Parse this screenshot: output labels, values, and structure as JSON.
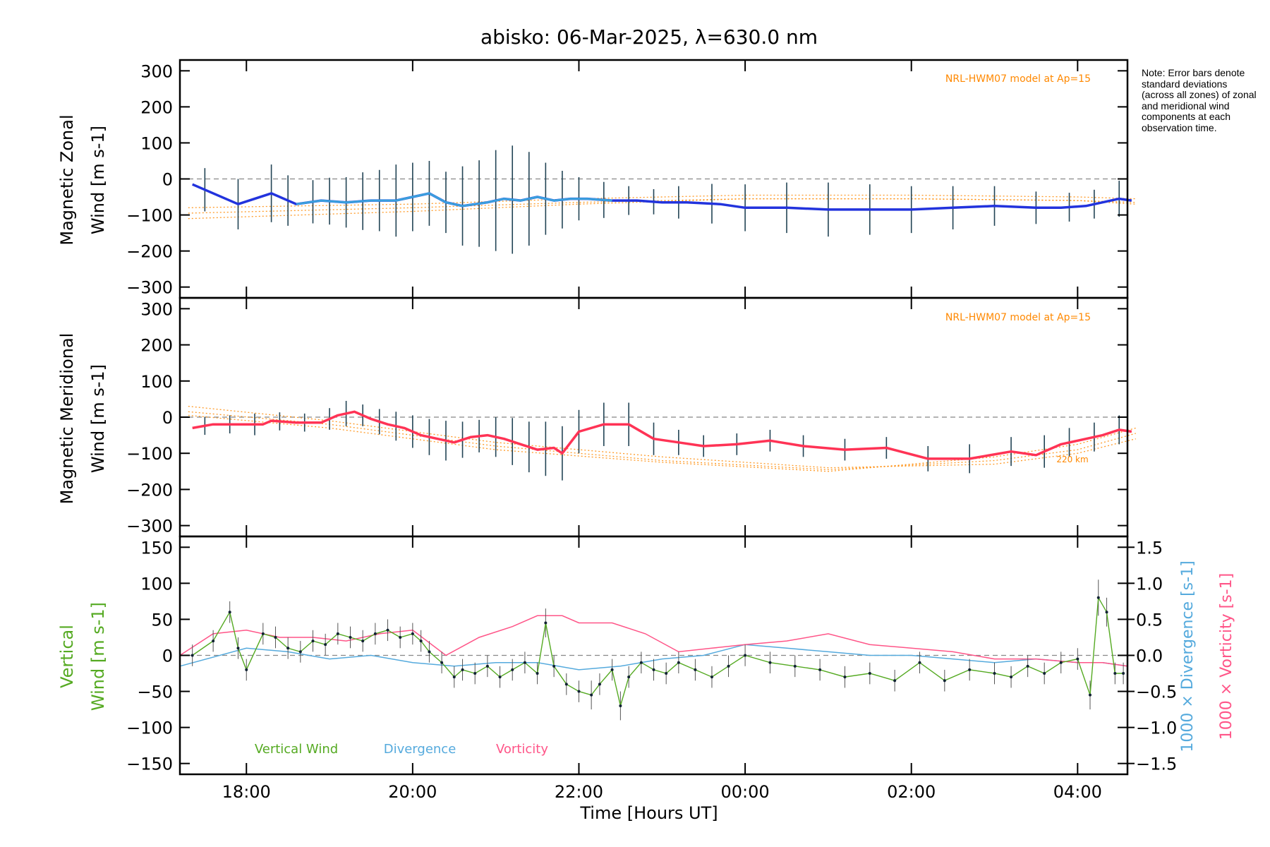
{
  "note_text": "Note: Error bars denote standard deviations (across all zones) of zonal and meridional wind components at each observation time.",
  "colors": {
    "zonal": "#2233dd",
    "zonal_light": "#3aa0dd",
    "meridional": "#ff3355",
    "vertical": "#55aa22",
    "divergence": "#55aadd",
    "vorticity": "#ff5588",
    "model": "#ff8800",
    "error_bar": "#224455"
  },
  "chart_data": [
    {
      "type": "line",
      "panel": "zonal",
      "title": "abisko: 06-Mar-2025, λ=630.0 nm",
      "ylabel_line1": "Magnetic Zonal",
      "ylabel_line2": "Wind [m s-1]",
      "ylim": [
        -330,
        330
      ],
      "yticks": [
        -300,
        -200,
        -100,
        0,
        100,
        200,
        300
      ],
      "model_label": "NRL-HWM07 model at Ap=15",
      "x": [
        17.35,
        17.9,
        18.3,
        18.6,
        18.9,
        19.2,
        19.5,
        19.8,
        20.0,
        20.2,
        20.4,
        20.6,
        20.9,
        21.1,
        21.3,
        21.5,
        21.7,
        21.9,
        22.1,
        22.4,
        22.7,
        23.0,
        23.3,
        23.7,
        24.0,
        24.5,
        25.0,
        25.5,
        26.0,
        26.5,
        27.0,
        27.5,
        27.8,
        28.1,
        28.3,
        28.5,
        28.65
      ],
      "values": [
        -15,
        -70,
        -40,
        -70,
        -60,
        -65,
        -60,
        -60,
        -50,
        -40,
        -65,
        -75,
        -65,
        -55,
        -60,
        -50,
        -60,
        -55,
        -55,
        -60,
        -60,
        -65,
        -65,
        -70,
        -80,
        -80,
        -85,
        -85,
        -85,
        -80,
        -75,
        -80,
        -80,
        -75,
        -65,
        -55,
        -60
      ],
      "error_x": [
        17.5,
        17.9,
        18.3,
        18.5,
        18.8,
        19.0,
        19.2,
        19.4,
        19.6,
        19.8,
        20.0,
        20.2,
        20.4,
        20.6,
        20.8,
        21.0,
        21.2,
        21.4,
        21.6,
        21.8,
        22.0,
        22.3,
        22.6,
        22.9,
        23.2,
        23.6,
        24.0,
        24.5,
        25.0,
        25.5,
        26.0,
        26.5,
        27.0,
        27.5,
        27.9,
        28.2,
        28.5
      ],
      "error_sd": [
        60,
        70,
        80,
        70,
        60,
        65,
        70,
        80,
        85,
        100,
        95,
        90,
        85,
        110,
        120,
        140,
        150,
        130,
        100,
        80,
        60,
        50,
        40,
        35,
        45,
        55,
        65,
        70,
        75,
        70,
        65,
        60,
        55,
        45,
        40,
        40,
        50
      ],
      "model_curves": [
        {
          "x": [
            17.3,
            20.0,
            22.0,
            24.0,
            26.0,
            28.0,
            28.7
          ],
          "values": [
            -110,
            -90,
            -70,
            -55,
            -55,
            -60,
            -65
          ]
        },
        {
          "x": [
            17.3,
            20.0,
            22.0,
            24.0,
            26.0,
            28.0,
            28.7
          ],
          "values": [
            -80,
            -70,
            -55,
            -45,
            -45,
            -50,
            -55
          ]
        },
        {
          "x": [
            17.3,
            20.0,
            22.0,
            24.0,
            26.0,
            28.0,
            28.7
          ],
          "values": [
            -95,
            -80,
            -65,
            -55,
            -55,
            -60,
            -70
          ]
        }
      ]
    },
    {
      "type": "line",
      "panel": "meridional",
      "ylabel_line1": "Magnetic Meridional",
      "ylabel_line2": "Wind [m s-1]",
      "ylim": [
        -330,
        330
      ],
      "yticks": [
        -300,
        -200,
        -100,
        0,
        100,
        200,
        300
      ],
      "model_label": "NRL-HWM07 model at Ap=15",
      "model_alt_label": "220 km",
      "x": [
        17.35,
        17.6,
        17.9,
        18.2,
        18.3,
        18.6,
        18.9,
        19.1,
        19.3,
        19.5,
        19.7,
        19.9,
        20.1,
        20.3,
        20.5,
        20.7,
        20.9,
        21.1,
        21.3,
        21.5,
        21.7,
        21.8,
        22.0,
        22.3,
        22.6,
        22.9,
        23.2,
        23.5,
        23.9,
        24.3,
        24.7,
        25.2,
        25.7,
        26.2,
        26.7,
        27.2,
        27.5,
        27.8,
        28.0,
        28.3,
        28.5,
        28.65
      ],
      "values": [
        -30,
        -20,
        -20,
        -20,
        -10,
        -15,
        -15,
        5,
        15,
        -5,
        -20,
        -30,
        -50,
        -60,
        -70,
        -55,
        -50,
        -60,
        -75,
        -90,
        -85,
        -100,
        -40,
        -20,
        -20,
        -60,
        -70,
        -80,
        -75,
        -65,
        -80,
        -90,
        -85,
        -115,
        -115,
        -95,
        -105,
        -75,
        -65,
        -50,
        -35,
        -40
      ],
      "error_x": [
        17.5,
        17.8,
        18.1,
        18.4,
        18.7,
        19.0,
        19.2,
        19.4,
        19.6,
        19.8,
        20.0,
        20.2,
        20.4,
        20.6,
        20.8,
        21.0,
        21.2,
        21.4,
        21.6,
        21.8,
        22.0,
        22.3,
        22.6,
        22.9,
        23.2,
        23.5,
        23.9,
        24.3,
        24.7,
        25.2,
        25.7,
        26.2,
        26.7,
        27.2,
        27.6,
        27.9,
        28.2,
        28.5
      ],
      "error_sd": [
        25,
        25,
        30,
        25,
        25,
        30,
        35,
        30,
        35,
        40,
        45,
        50,
        55,
        50,
        45,
        55,
        65,
        70,
        75,
        75,
        60,
        60,
        60,
        45,
        35,
        30,
        30,
        30,
        30,
        30,
        30,
        35,
        40,
        40,
        45,
        40,
        40,
        40
      ],
      "model_curves": [
        {
          "x": [
            17.3,
            19.0,
            21.0,
            23.0,
            25.0,
            27.0,
            28.0,
            28.7
          ],
          "values": [
            30,
            -10,
            -70,
            -110,
            -140,
            -130,
            -100,
            -60
          ]
        },
        {
          "x": [
            17.3,
            19.0,
            21.0,
            23.0,
            25.0,
            27.0,
            28.0,
            28.7
          ],
          "values": [
            15,
            -20,
            -80,
            -120,
            -145,
            -120,
            -90,
            -45
          ]
        },
        {
          "x": [
            17.3,
            19.0,
            21.0,
            23.0,
            25.0,
            27.0,
            28.0,
            28.7
          ],
          "values": [
            5,
            -30,
            -90,
            -125,
            -150,
            -110,
            -75,
            -30
          ]
        }
      ]
    },
    {
      "type": "line",
      "panel": "vertical",
      "ylabel_line1": "Vertical",
      "ylabel_line2": "Wind [m s-1]",
      "ylim": [
        -165,
        165
      ],
      "yticks": [
        -150,
        -100,
        -50,
        0,
        50,
        100,
        150
      ],
      "xlim": [
        17.2,
        28.6
      ],
      "xticks": [
        18,
        20,
        22,
        24,
        26,
        28
      ],
      "xticklabels": [
        "18:00",
        "20:00",
        "22:00",
        "00:00",
        "02:00",
        "04:00"
      ],
      "xlabel": "Time [Hours UT]",
      "y2label_div": "1000 × Divergence [s-1]",
      "y2label_vort": "1000 × Vorticity [s-1]",
      "y2lim": [
        -1.65,
        1.65
      ],
      "y2ticks": [
        -1.5,
        -1.0,
        -0.5,
        0.0,
        0.5,
        1.0,
        1.5
      ],
      "y2ticklabels": [
        "−1.5",
        "−1.0",
        "−0.5",
        "0.0",
        "0.5",
        "1.0",
        "1.5"
      ],
      "legend": [
        "Vertical Wind",
        "Divergence",
        "Vorticity"
      ],
      "series": [
        {
          "name": "Vertical Wind",
          "x": [
            17.35,
            17.6,
            17.8,
            17.9,
            18.0,
            18.2,
            18.35,
            18.5,
            18.65,
            18.8,
            18.95,
            19.1,
            19.25,
            19.4,
            19.55,
            19.7,
            19.85,
            20.0,
            20.1,
            20.2,
            20.35,
            20.5,
            20.6,
            20.75,
            20.9,
            21.05,
            21.2,
            21.35,
            21.5,
            21.6,
            21.7,
            21.85,
            22.0,
            22.15,
            22.25,
            22.4,
            22.5,
            22.6,
            22.75,
            22.9,
            23.05,
            23.2,
            23.4,
            23.6,
            23.8,
            24.0,
            24.3,
            24.6,
            24.9,
            25.2,
            25.5,
            25.8,
            26.1,
            26.4,
            26.7,
            27.0,
            27.2,
            27.4,
            27.6,
            27.8,
            28.0,
            28.15,
            28.25,
            28.35,
            28.45,
            28.55
          ],
          "values": [
            0,
            20,
            60,
            10,
            -20,
            30,
            25,
            10,
            5,
            20,
            15,
            30,
            25,
            20,
            30,
            35,
            25,
            30,
            20,
            5,
            -10,
            -30,
            -20,
            -25,
            -15,
            -30,
            -20,
            -10,
            -25,
            45,
            -15,
            -40,
            -50,
            -55,
            -40,
            -20,
            -70,
            -30,
            -10,
            -20,
            -25,
            -10,
            -20,
            -30,
            -15,
            0,
            -10,
            -15,
            -20,
            -30,
            -25,
            -35,
            -10,
            -35,
            -20,
            -25,
            -30,
            -15,
            -25,
            -10,
            -5,
            -55,
            80,
            60,
            -25,
            -25
          ],
          "errors": [
            15,
            15,
            15,
            15,
            15,
            15,
            15,
            15,
            15,
            15,
            15,
            15,
            15,
            15,
            15,
            15,
            15,
            15,
            15,
            15,
            15,
            15,
            15,
            15,
            15,
            15,
            15,
            15,
            15,
            20,
            15,
            15,
            15,
            20,
            15,
            15,
            20,
            15,
            15,
            15,
            15,
            15,
            15,
            15,
            15,
            15,
            15,
            15,
            15,
            15,
            15,
            15,
            15,
            15,
            15,
            15,
            15,
            15,
            15,
            15,
            15,
            20,
            25,
            20,
            15,
            15
          ]
        },
        {
          "name": "Divergence",
          "x": [
            17.2,
            18.0,
            18.5,
            19.0,
            19.5,
            20.0,
            20.5,
            21.0,
            21.5,
            22.0,
            22.5,
            23.0,
            23.5,
            24.0,
            24.5,
            25.0,
            25.5,
            26.0,
            26.5,
            27.0,
            27.5,
            28.0,
            28.3,
            28.6
          ],
          "values": [
            -0.15,
            0.1,
            0.05,
            -0.05,
            0.0,
            -0.1,
            -0.15,
            -0.1,
            -0.1,
            -0.2,
            -0.15,
            -0.05,
            0.0,
            0.15,
            0.1,
            0.05,
            0.0,
            0.0,
            -0.05,
            -0.1,
            -0.05,
            -0.1,
            -0.1,
            -0.15
          ]
        },
        {
          "name": "Vorticity",
          "x": [
            17.2,
            17.6,
            18.0,
            18.4,
            18.8,
            19.2,
            19.6,
            20.0,
            20.4,
            20.8,
            21.2,
            21.5,
            21.8,
            22.0,
            22.4,
            22.8,
            23.2,
            23.6,
            24.0,
            24.5,
            25.0,
            25.5,
            26.0,
            26.5,
            27.0,
            27.5,
            28.0,
            28.3,
            28.6
          ],
          "values": [
            0.0,
            0.3,
            0.35,
            0.25,
            0.25,
            0.2,
            0.3,
            0.35,
            0.0,
            0.25,
            0.4,
            0.55,
            0.55,
            0.45,
            0.45,
            0.3,
            0.05,
            0.1,
            0.15,
            0.2,
            0.3,
            0.15,
            0.1,
            0.05,
            -0.05,
            -0.05,
            -0.1,
            -0.1,
            -0.15
          ],
          "axis": "right"
        }
      ]
    }
  ]
}
